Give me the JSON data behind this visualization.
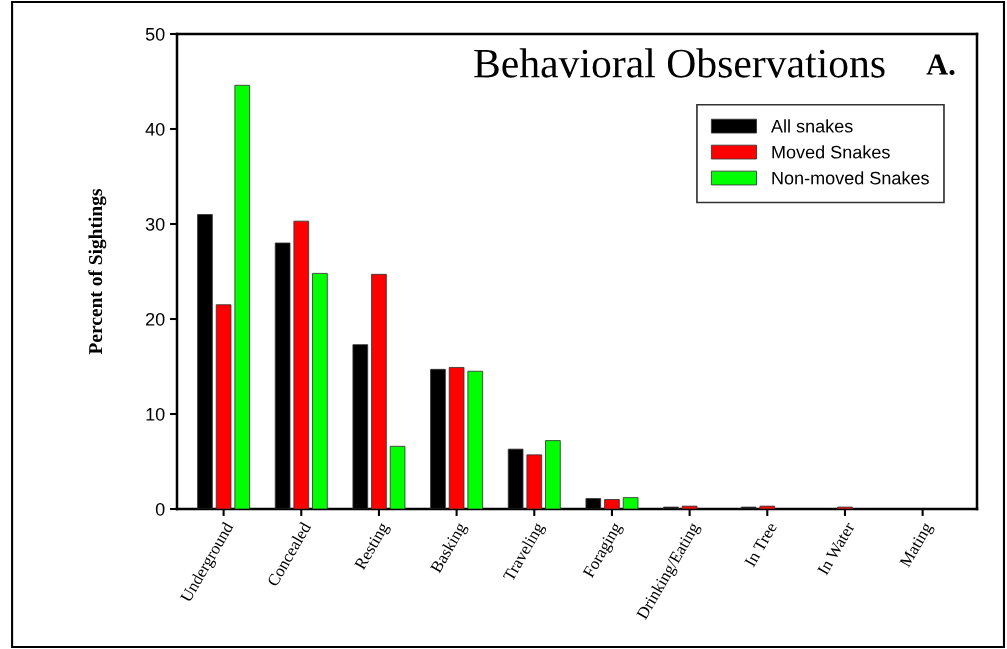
{
  "chart_data": {
    "type": "bar",
    "title": "Behavioral Observations",
    "ylabel": "Percent of Sightings",
    "annotations": [
      "A."
    ],
    "categories": [
      "Underground",
      "Concealed",
      "Resting",
      "Basking",
      "Traveling",
      "Foraging",
      "Drinking/Eating",
      "In Tree",
      "In Water",
      "Mating"
    ],
    "series": [
      {
        "name": "All snakes",
        "color": "#000000",
        "values": [
          31.0,
          28.0,
          17.3,
          14.7,
          6.3,
          1.1,
          0.2,
          0.2,
          0,
          0
        ]
      },
      {
        "name": "Moved Snakes",
        "color": "#ff0000",
        "values": [
          21.5,
          30.3,
          24.7,
          14.9,
          5.7,
          1.0,
          0.3,
          0.3,
          0.2,
          0
        ]
      },
      {
        "name": "Non-moved Snakes",
        "color": "#00ff00",
        "values": [
          44.6,
          24.8,
          6.6,
          14.5,
          7.2,
          1.2,
          0,
          0,
          0,
          0
        ]
      }
    ],
    "ylim": [
      0,
      50
    ],
    "yticks": [
      0,
      10,
      20,
      30,
      40,
      50
    ],
    "grid": false,
    "legend": "top right"
  }
}
